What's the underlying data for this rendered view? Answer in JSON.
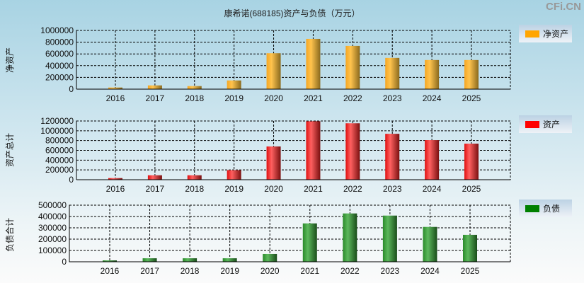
{
  "title": "康希诺(688185)资产与负债（万元）",
  "watermark": "CFi.CN",
  "chart_data": [
    {
      "type": "bar",
      "ylabel": "净资产",
      "legend": "净资产",
      "color": "#f5a623",
      "categories": [
        "2016",
        "2017",
        "2018",
        "2019",
        "2020",
        "2021",
        "2022",
        "2023",
        "2024",
        "2025"
      ],
      "values": [
        28000,
        64000,
        52000,
        148000,
        612000,
        856000,
        736000,
        532000,
        496000,
        496000
      ],
      "ylim": [
        0,
        1000000
      ],
      "yticks": [
        0,
        200000,
        400000,
        600000,
        800000,
        1000000
      ],
      "grid": true,
      "legend_position": "right"
    },
    {
      "type": "bar",
      "ylabel": "资产总计",
      "legend": "资产",
      "color": "#ff0000",
      "categories": [
        "2016",
        "2017",
        "2018",
        "2019",
        "2020",
        "2021",
        "2022",
        "2023",
        "2024",
        "2025"
      ],
      "values": [
        33000,
        91000,
        91000,
        196000,
        679000,
        1196000,
        1153000,
        938000,
        809000,
        737000
      ],
      "ylim": [
        0,
        1200000
      ],
      "yticks": [
        0,
        200000,
        400000,
        600000,
        800000,
        1000000,
        1200000
      ],
      "grid": true,
      "legend_position": "right"
    },
    {
      "type": "bar",
      "ylabel": "负债合计",
      "legend": "负债",
      "color": "#008000",
      "categories": [
        "2016",
        "2017",
        "2018",
        "2019",
        "2020",
        "2021",
        "2022",
        "2023",
        "2024",
        "2025"
      ],
      "values": [
        12500,
        31000,
        31000,
        31000,
        69000,
        339000,
        427000,
        408000,
        308000,
        238000
      ],
      "ylim": [
        0,
        500000
      ],
      "yticks": [
        0,
        100000,
        200000,
        300000,
        400000,
        500000
      ],
      "grid": true,
      "legend_position": "right"
    }
  ]
}
